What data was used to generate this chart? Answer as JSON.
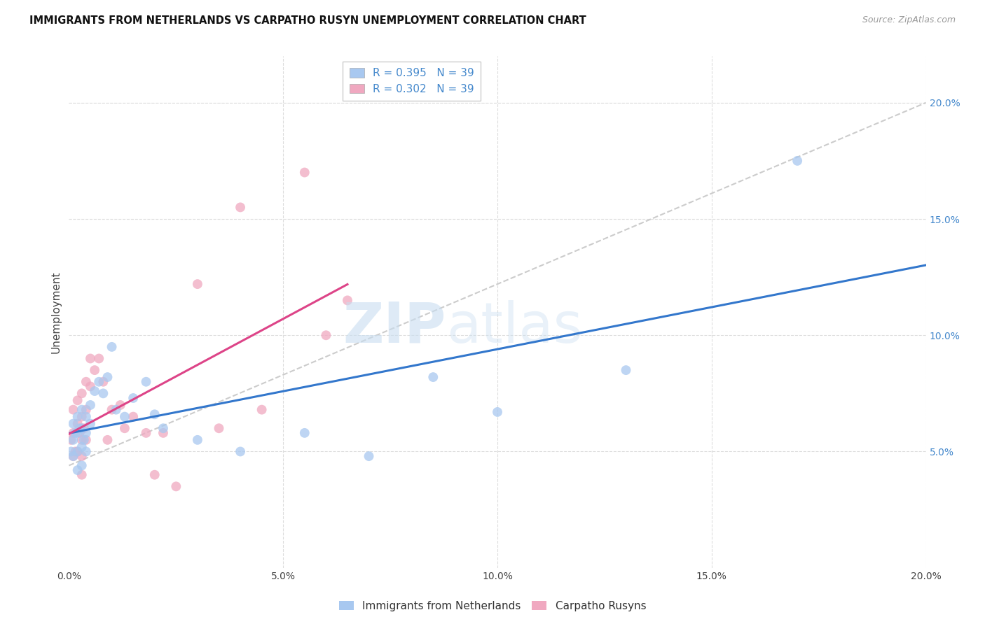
{
  "title": "IMMIGRANTS FROM NETHERLANDS VS CARPATHO RUSYN UNEMPLOYMENT CORRELATION CHART",
  "source": "Source: ZipAtlas.com",
  "ylabel": "Unemployment",
  "legend_label1": "Immigrants from Netherlands",
  "legend_label2": "Carpatho Rusyns",
  "R1": "0.395",
  "N1": "39",
  "R2": "0.302",
  "N2": "39",
  "color1": "#a8c8f0",
  "color2": "#f0a8c0",
  "line_color1": "#3377cc",
  "line_color2": "#dd4488",
  "diag_color": "#cccccc",
  "background": "#ffffff",
  "grid_color": "#dddddd",
  "xlim": [
    0.0,
    0.2
  ],
  "ylim": [
    0.0,
    0.22
  ],
  "xticks": [
    0.0,
    0.05,
    0.1,
    0.15,
    0.2
  ],
  "yticks": [
    0.05,
    0.1,
    0.15,
    0.2
  ],
  "xticklabels": [
    "0.0%",
    "5.0%",
    "10.0%",
    "15.0%",
    "20.0%"
  ],
  "right_yticklabels": [
    "5.0%",
    "10.0%",
    "15.0%",
    "20.0%"
  ],
  "blue_x": [
    0.0005,
    0.001,
    0.001,
    0.001,
    0.0015,
    0.002,
    0.002,
    0.002,
    0.002,
    0.0025,
    0.003,
    0.003,
    0.003,
    0.003,
    0.0035,
    0.004,
    0.004,
    0.004,
    0.005,
    0.005,
    0.006,
    0.007,
    0.008,
    0.009,
    0.01,
    0.011,
    0.013,
    0.015,
    0.018,
    0.02,
    0.022,
    0.03,
    0.04,
    0.055,
    0.07,
    0.085,
    0.1,
    0.13,
    0.17
  ],
  "blue_y": [
    0.05,
    0.062,
    0.055,
    0.048,
    0.058,
    0.065,
    0.058,
    0.05,
    0.042,
    0.06,
    0.068,
    0.06,
    0.052,
    0.044,
    0.055,
    0.065,
    0.058,
    0.05,
    0.07,
    0.062,
    0.076,
    0.08,
    0.075,
    0.082,
    0.095,
    0.068,
    0.065,
    0.073,
    0.08,
    0.066,
    0.06,
    0.055,
    0.05,
    0.058,
    0.048,
    0.082,
    0.067,
    0.085,
    0.175
  ],
  "pink_x": [
    0.0005,
    0.001,
    0.001,
    0.001,
    0.0015,
    0.002,
    0.002,
    0.002,
    0.0025,
    0.003,
    0.003,
    0.003,
    0.003,
    0.003,
    0.0035,
    0.004,
    0.004,
    0.004,
    0.005,
    0.005,
    0.006,
    0.007,
    0.008,
    0.009,
    0.01,
    0.012,
    0.013,
    0.015,
    0.018,
    0.02,
    0.022,
    0.025,
    0.03,
    0.035,
    0.04,
    0.045,
    0.055,
    0.06,
    0.065
  ],
  "pink_y": [
    0.055,
    0.068,
    0.058,
    0.048,
    0.05,
    0.072,
    0.062,
    0.05,
    0.058,
    0.075,
    0.065,
    0.055,
    0.048,
    0.04,
    0.06,
    0.08,
    0.068,
    0.055,
    0.09,
    0.078,
    0.085,
    0.09,
    0.08,
    0.055,
    0.068,
    0.07,
    0.06,
    0.065,
    0.058,
    0.04,
    0.058,
    0.035,
    0.122,
    0.06,
    0.155,
    0.068,
    0.17,
    0.1,
    0.115
  ],
  "watermark_zip": "ZIP",
  "watermark_atlas": "atlas",
  "title_fontsize": 10.5,
  "axis_label_fontsize": 11,
  "tick_fontsize": 10,
  "legend_fontsize": 11,
  "marker_size": 100
}
